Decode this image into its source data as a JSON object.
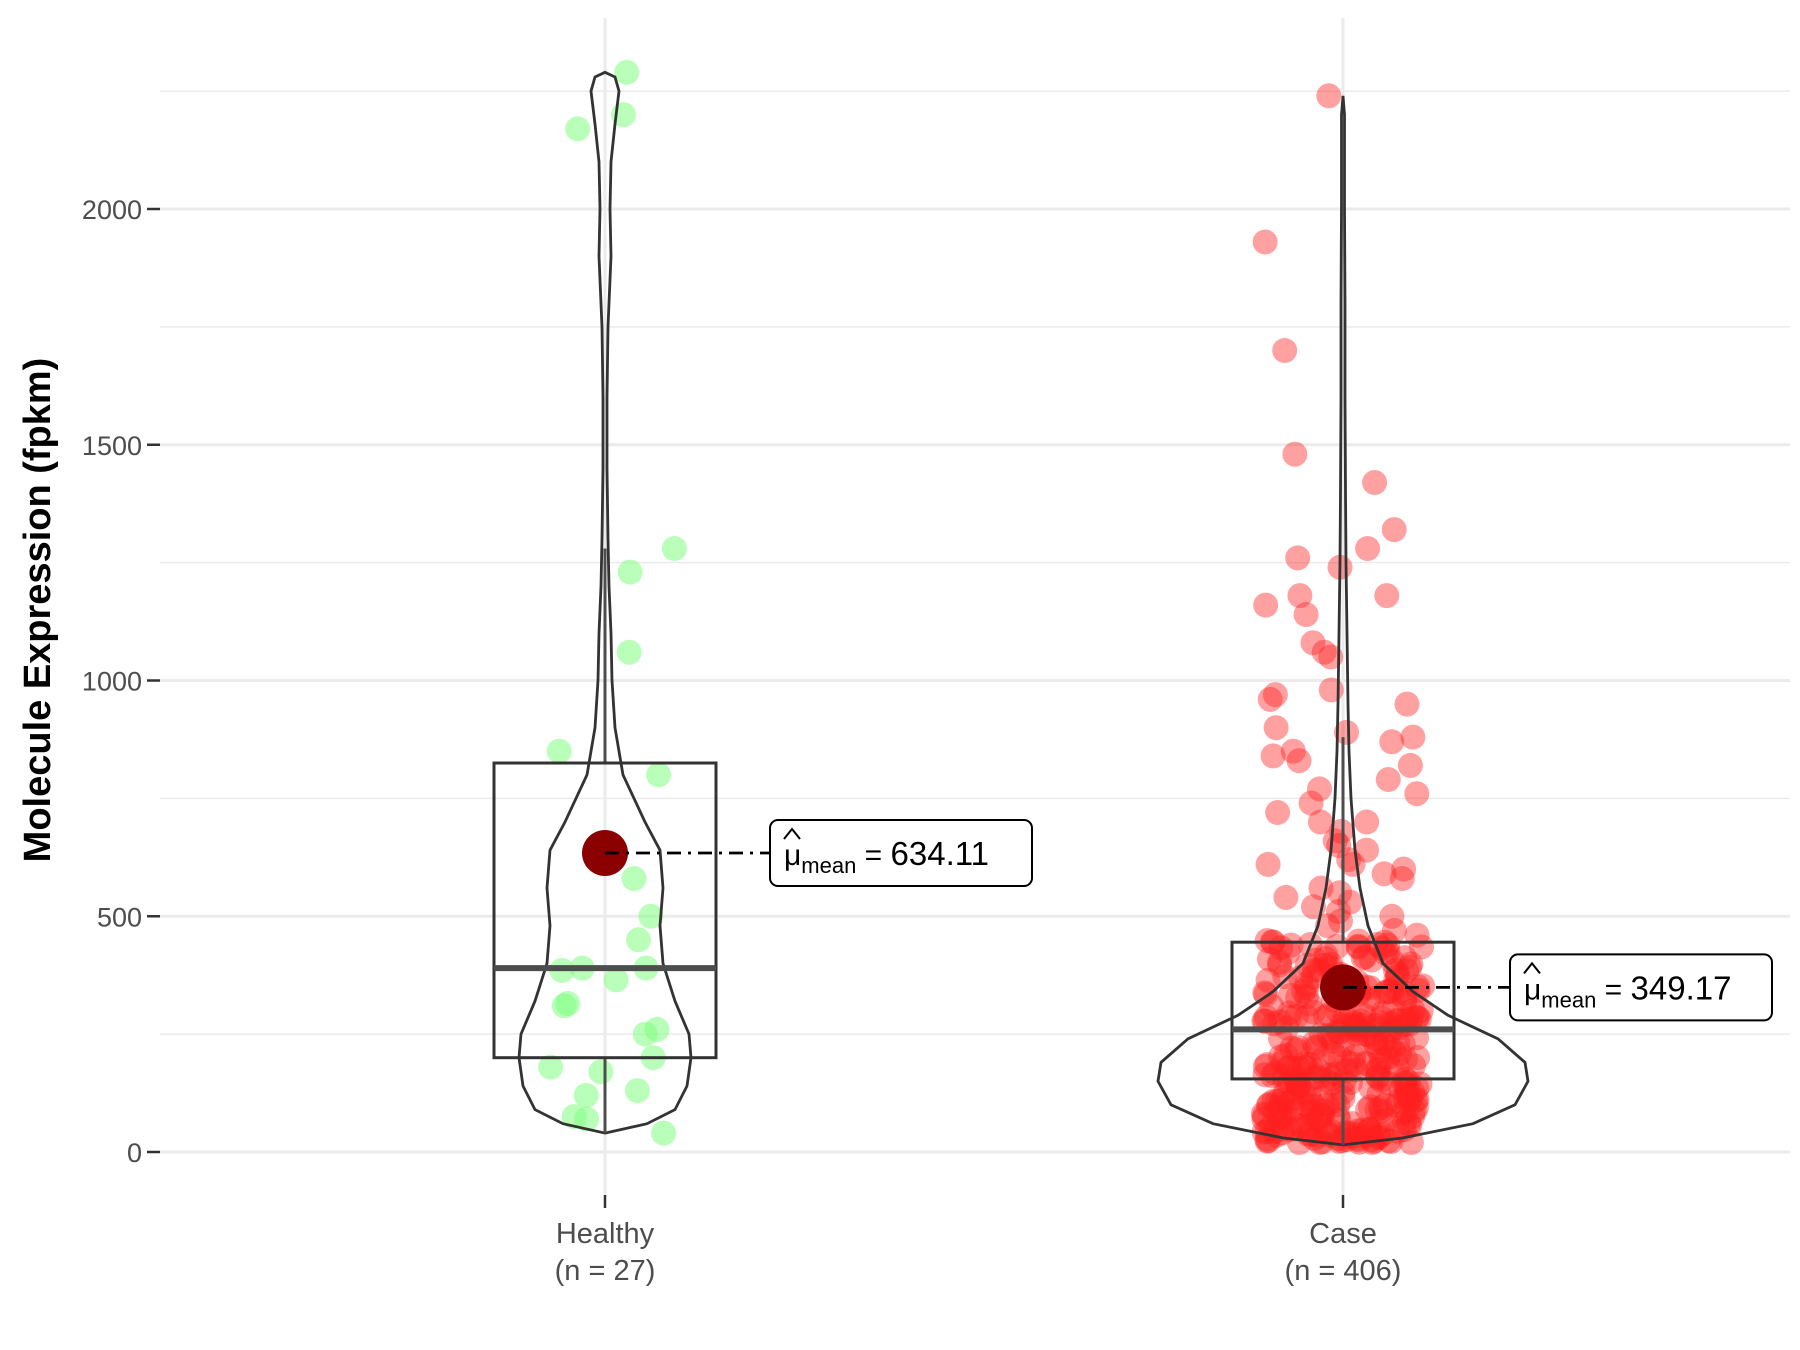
{
  "chart_data": {
    "type": "violin",
    "ylabel": "Molecule Expression (fpkm)",
    "ylim": [
      -100,
      2400
    ],
    "yticks": [
      0,
      500,
      1000,
      1500,
      2000
    ],
    "ytick_labels": [
      "0",
      "500",
      "1000",
      "1500",
      "2000"
    ],
    "grid": true,
    "groups": [
      {
        "name": "Healthy",
        "n_label": "(n = 27)",
        "color": "#7fff7f",
        "box": {
          "q1": 200,
          "median": 390,
          "q3": 825,
          "whisker_low": 40,
          "whisker_high": 1280
        },
        "violin_max": 2290,
        "mean": 634.11,
        "mean_label": "634.11",
        "mean_sub": "mean",
        "mean_symbol": "μ",
        "points": [
          2290,
          2170,
          2200,
          1280,
          1230,
          1060,
          850,
          800,
          580,
          500,
          450,
          390,
          390,
          385,
          365,
          315,
          310,
          250,
          260,
          200,
          180,
          170,
          130,
          120,
          75,
          70,
          40
        ]
      },
      {
        "name": "Case",
        "n_label": "(n = 406)",
        "color": "#ff2020",
        "box": {
          "q1": 155,
          "median": 260,
          "q3": 445,
          "whisker_low": 15,
          "whisker_high": 880
        },
        "violin_max": 2240,
        "mean": 349.17,
        "mean_label": "349.17",
        "mean_sub": "mean",
        "mean_symbol": "μ",
        "outliers": [
          2240,
          1930,
          1700,
          1480,
          1420,
          1320,
          1280,
          1260,
          1240,
          1180,
          1180,
          1160,
          1140,
          1080,
          1060,
          1050,
          980,
          970,
          960,
          950,
          900,
          890,
          880,
          870,
          850,
          840,
          830,
          820,
          790,
          770,
          760,
          740,
          720,
          700,
          700,
          680,
          660,
          650,
          640,
          620,
          610,
          610,
          600,
          590,
          580,
          560,
          550,
          540,
          530,
          520,
          510,
          500,
          490,
          480,
          470,
          460
        ]
      }
    ]
  }
}
